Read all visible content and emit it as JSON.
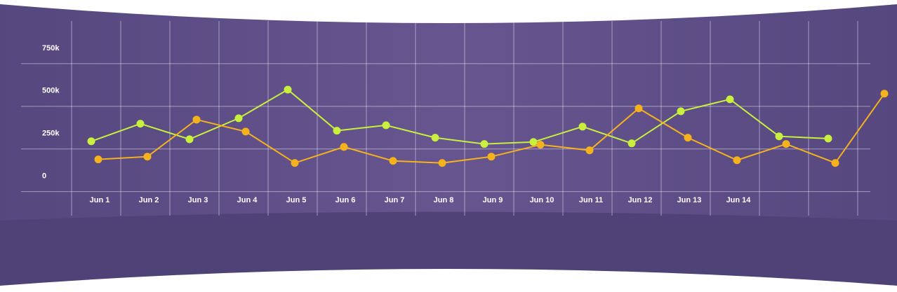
{
  "chart_data": {
    "type": "line",
    "categories": [
      "Jun 1",
      "Jun 2",
      "Jun 3",
      "Jun 4",
      "Jun 5",
      "Jun 6",
      "Jun 7",
      "Jun 8",
      "Jun 9",
      "Jun 10",
      "Jun 11",
      "Jun 12",
      "Jun 13",
      "Jun 14",
      null,
      null,
      null
    ],
    "series": [
      {
        "color": "#c8f03c",
        "values": [
          295000,
          398000,
          307000,
          430000,
          598000,
          357000,
          389000,
          316000,
          279000,
          291000,
          381000,
          283000,
          471000,
          541000,
          324000,
          311000,
          null
        ]
      },
      {
        "color": "#f5b21c",
        "values": [
          189000,
          205000,
          422000,
          352000,
          168000,
          262000,
          180000,
          168000,
          205000,
          275000,
          242000,
          488000,
          316000,
          184000,
          279000,
          168000,
          574000
        ]
      }
    ],
    "ylim": [
      -100000,
      1000000
    ],
    "yticks": [
      0,
      {
        "value": 250000,
        "label": "250k"
      },
      {
        "value": 500000,
        "label": "500k"
      },
      {
        "value": 750000,
        "label": "750k"
      }
    ],
    "grid": true
  }
}
